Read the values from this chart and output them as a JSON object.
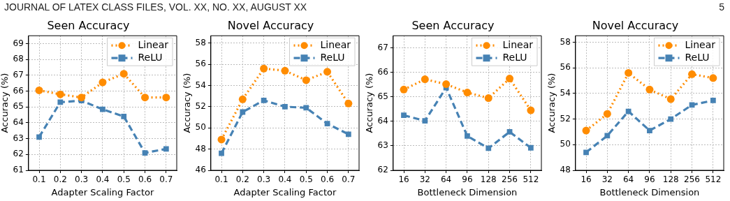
{
  "chart_data": [
    {
      "type": "line",
      "title": "Seen Accuracy",
      "xlabel": "Adapter Scaling Factor",
      "ylabel": "Accuracy (%)",
      "annotations": [
        "JOURNAL OF LATEX CLASS FILES, VOL. XX, NO. XX, AUGUST XX"
      ],
      "categories": [
        "0.1",
        "0.2",
        "0.3",
        "0.4",
        "0.5",
        "0.6",
        "0.7"
      ],
      "ylim": [
        61,
        69.5
      ],
      "yticks": [
        61,
        62,
        63,
        64,
        65,
        66,
        67,
        68,
        69
      ],
      "grid": true,
      "legend": "top right",
      "series": [
        {
          "name": "Linear",
          "color": "#ff8c00",
          "marker": "circle",
          "line_style": "dotted",
          "values": [
            66.05,
            65.8,
            65.6,
            66.55,
            67.1,
            65.6,
            65.6
          ]
        },
        {
          "name": "ReLU",
          "color": "#4682b4",
          "marker": "square",
          "line_style": "dashed",
          "values": [
            63.1,
            65.3,
            65.4,
            64.85,
            64.4,
            62.1,
            62.35
          ]
        }
      ]
    },
    {
      "type": "line",
      "title": "Novel Accuracy",
      "xlabel": "Adapter Scaling Factor",
      "ylabel": "Accuracy (%)",
      "categories": [
        "0.1",
        "0.2",
        "0.3",
        "0.4",
        "0.5",
        "0.6",
        "0.7"
      ],
      "ylim": [
        46,
        58.7
      ],
      "yticks": [
        46,
        48,
        50,
        52,
        54,
        56,
        58
      ],
      "grid": true,
      "legend": "top right",
      "series": [
        {
          "name": "Linear",
          "color": "#ff8c00",
          "marker": "circle",
          "line_style": "dotted",
          "values": [
            48.9,
            52.7,
            55.6,
            55.4,
            54.5,
            55.3,
            52.3
          ]
        },
        {
          "name": "ReLU",
          "color": "#4682b4",
          "marker": "square",
          "line_style": "dashed",
          "values": [
            47.6,
            51.5,
            52.6,
            52.0,
            51.9,
            50.4,
            49.4
          ]
        }
      ]
    },
    {
      "type": "line",
      "title": "Seen Accuracy",
      "xlabel": "Bottleneck Dimension",
      "ylabel": "Accuracy (%)",
      "categories": [
        "16",
        "32",
        "64",
        "96",
        "128",
        "256",
        "512"
      ],
      "ylim": [
        62,
        67.5
      ],
      "yticks": [
        62,
        63,
        64,
        65,
        66,
        67
      ],
      "grid": true,
      "legend": "top right",
      "series": [
        {
          "name": "Linear",
          "color": "#ff8c00",
          "marker": "circle",
          "line_style": "dotted",
          "values": [
            65.3,
            65.72,
            65.52,
            65.18,
            64.95,
            65.75,
            64.45
          ]
        },
        {
          "name": "ReLU",
          "color": "#4682b4",
          "marker": "square",
          "line_style": "dashed",
          "values": [
            64.25,
            64.02,
            65.38,
            63.4,
            62.9,
            63.57,
            62.92
          ]
        }
      ]
    },
    {
      "type": "line",
      "title": "Novel Accuracy",
      "xlabel": "Bottleneck Dimension",
      "ylabel": "Accuracy (%)",
      "annotations": [
        "5"
      ],
      "categories": [
        "16",
        "32",
        "64",
        "96",
        "128",
        "256",
        "512"
      ],
      "ylim": [
        48,
        58.5
      ],
      "yticks": [
        48,
        50,
        52,
        54,
        56,
        58
      ],
      "grid": true,
      "legend": "top right",
      "series": [
        {
          "name": "Linear",
          "color": "#ff8c00",
          "marker": "circle",
          "line_style": "dotted",
          "values": [
            51.1,
            52.4,
            55.6,
            54.3,
            53.55,
            55.5,
            55.2
          ]
        },
        {
          "name": "ReLU",
          "color": "#4682b4",
          "marker": "square",
          "line_style": "dashed",
          "values": [
            49.4,
            50.7,
            52.6,
            51.1,
            52.0,
            53.1,
            53.45
          ]
        }
      ]
    }
  ]
}
